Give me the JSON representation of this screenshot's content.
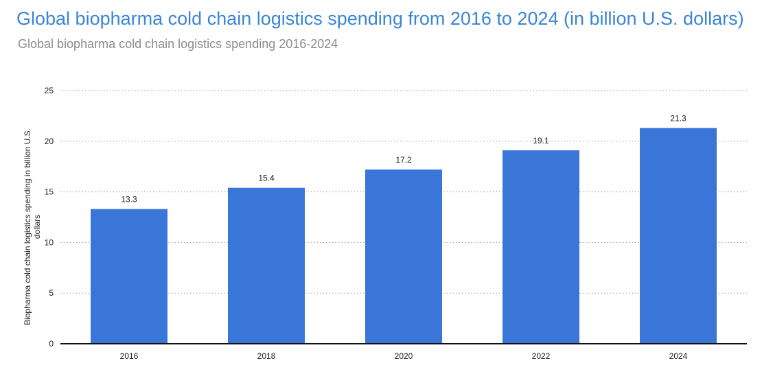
{
  "title": "Global biopharma cold chain logistics spending from 2016 to 2024 (in billion U.S. dollars)",
  "subtitle": "Global biopharma cold chain logistics spending 2016-2024",
  "chart_data": {
    "type": "bar",
    "categories": [
      "2016",
      "2018",
      "2020",
      "2022",
      "2024"
    ],
    "values": [
      13.3,
      15.4,
      17.2,
      19.1,
      21.3
    ],
    "data_labels": [
      "13.3",
      "15.4",
      "17.2",
      "19.1",
      "21.3"
    ],
    "ylabel_lines": [
      "Biopharma cold chain logistics spending in billion U.S.",
      "dollars"
    ],
    "xlabel": "",
    "ylim": [
      0,
      25
    ],
    "yticks": [
      0,
      5,
      10,
      15,
      20,
      25
    ],
    "grid": true,
    "bar_color": "#3a76d8"
  }
}
